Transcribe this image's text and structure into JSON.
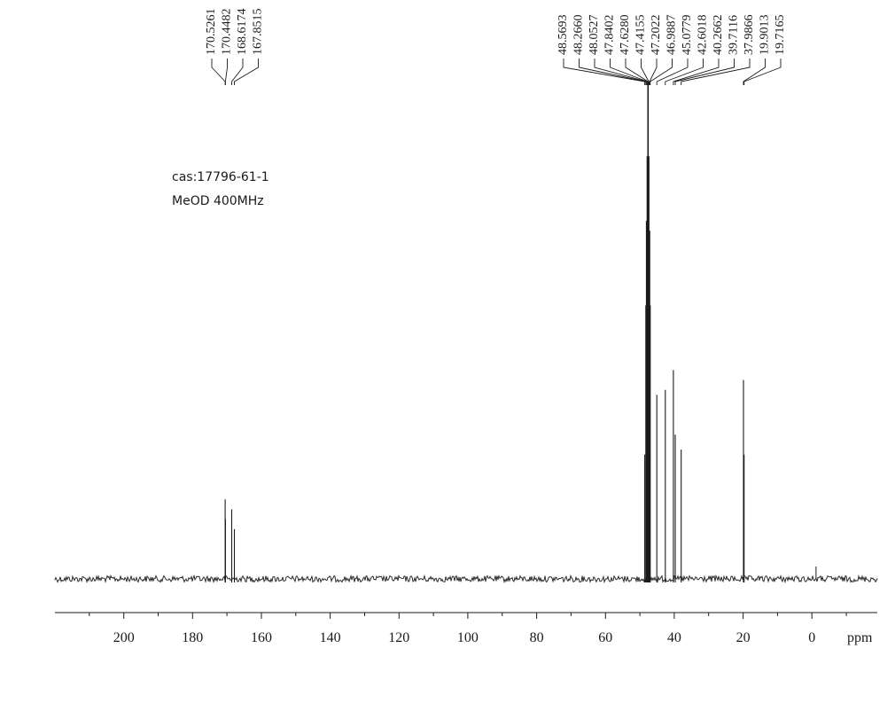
{
  "annotations": {
    "cas": "cas:17796-61-1",
    "solvent": "MeOD 400MHz"
  },
  "chart_data": {
    "type": "line",
    "title": "",
    "xlabel": "ppm",
    "ylabel": "",
    "x_reversed": true,
    "xlim": [
      220,
      -19
    ],
    "xticks": [
      200,
      180,
      160,
      140,
      120,
      100,
      80,
      60,
      40,
      20,
      0
    ],
    "grid": false,
    "peak_label_groups": [
      [
        "170.5261",
        "170.4482",
        "168.6174",
        "167.8515"
      ],
      [
        "48.5693",
        "48.2660",
        "48.0527",
        "47.8402",
        "47.6280",
        "47.4155",
        "47.2022",
        "46.9887",
        "45.0779",
        "42.6018",
        "40.2662",
        "39.7116",
        "37.9866",
        "19.9013",
        "19.7165"
      ]
    ],
    "peaks": [
      {
        "ppm": 170.53,
        "height": 0.16
      },
      {
        "ppm": 170.45,
        "height": 0.12
      },
      {
        "ppm": 168.62,
        "height": 0.14
      },
      {
        "ppm": 167.85,
        "height": 0.1
      },
      {
        "ppm": 48.57,
        "height": 0.25
      },
      {
        "ppm": 48.27,
        "height": 0.55
      },
      {
        "ppm": 48.05,
        "height": 0.72
      },
      {
        "ppm": 47.84,
        "height": 0.85
      },
      {
        "ppm": 47.63,
        "height": 1.0
      },
      {
        "ppm": 47.42,
        "height": 0.85
      },
      {
        "ppm": 47.2,
        "height": 0.7
      },
      {
        "ppm": 46.99,
        "height": 0.55
      },
      {
        "ppm": 45.08,
        "height": 0.37
      },
      {
        "ppm": 42.6,
        "height": 0.38
      },
      {
        "ppm": 40.27,
        "height": 0.42
      },
      {
        "ppm": 39.71,
        "height": 0.29
      },
      {
        "ppm": 37.99,
        "height": 0.26
      },
      {
        "ppm": 19.9,
        "height": 0.4
      },
      {
        "ppm": 19.72,
        "height": 0.25
      }
    ]
  }
}
